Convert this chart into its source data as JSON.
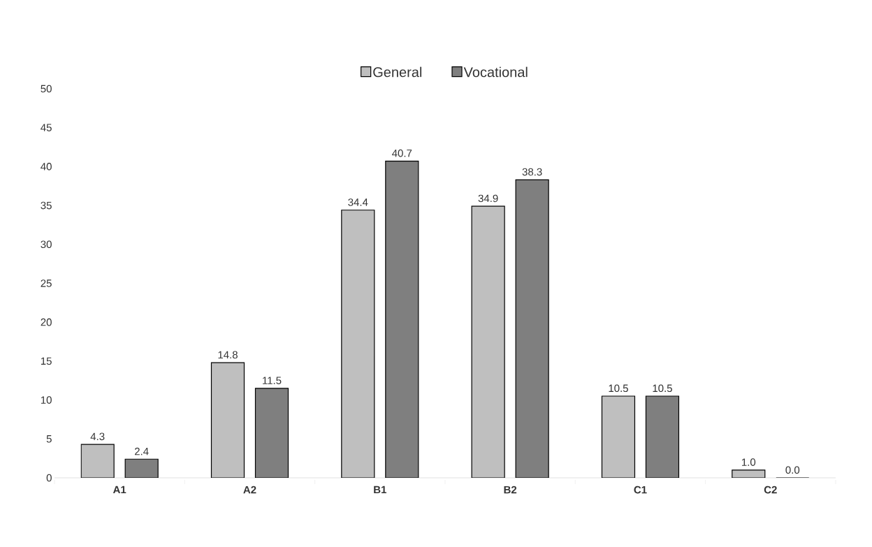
{
  "chart_data": {
    "type": "bar",
    "categories": [
      "A1",
      "A2",
      "B1",
      "B2",
      "C1",
      "C2"
    ],
    "series": [
      {
        "name": "General",
        "color": "#bfbfbf",
        "values": [
          4.3,
          14.8,
          34.4,
          34.9,
          10.5,
          1.0
        ],
        "value_labels": [
          "4.3",
          "14.8",
          "34.4",
          "34.9",
          "10.5",
          "1.0"
        ]
      },
      {
        "name": "Vocational",
        "color": "#7f7f7f",
        "values": [
          2.4,
          11.5,
          40.7,
          38.3,
          10.5,
          0.0
        ],
        "value_labels": [
          "2.4",
          "11.5",
          "40.7",
          "38.3",
          "10.5",
          "0.0"
        ]
      }
    ],
    "ylim": [
      0,
      50
    ],
    "yticks": [
      0,
      5,
      10,
      15,
      20,
      25,
      30,
      35,
      40,
      45,
      50
    ],
    "grid": false,
    "legend": "top"
  }
}
